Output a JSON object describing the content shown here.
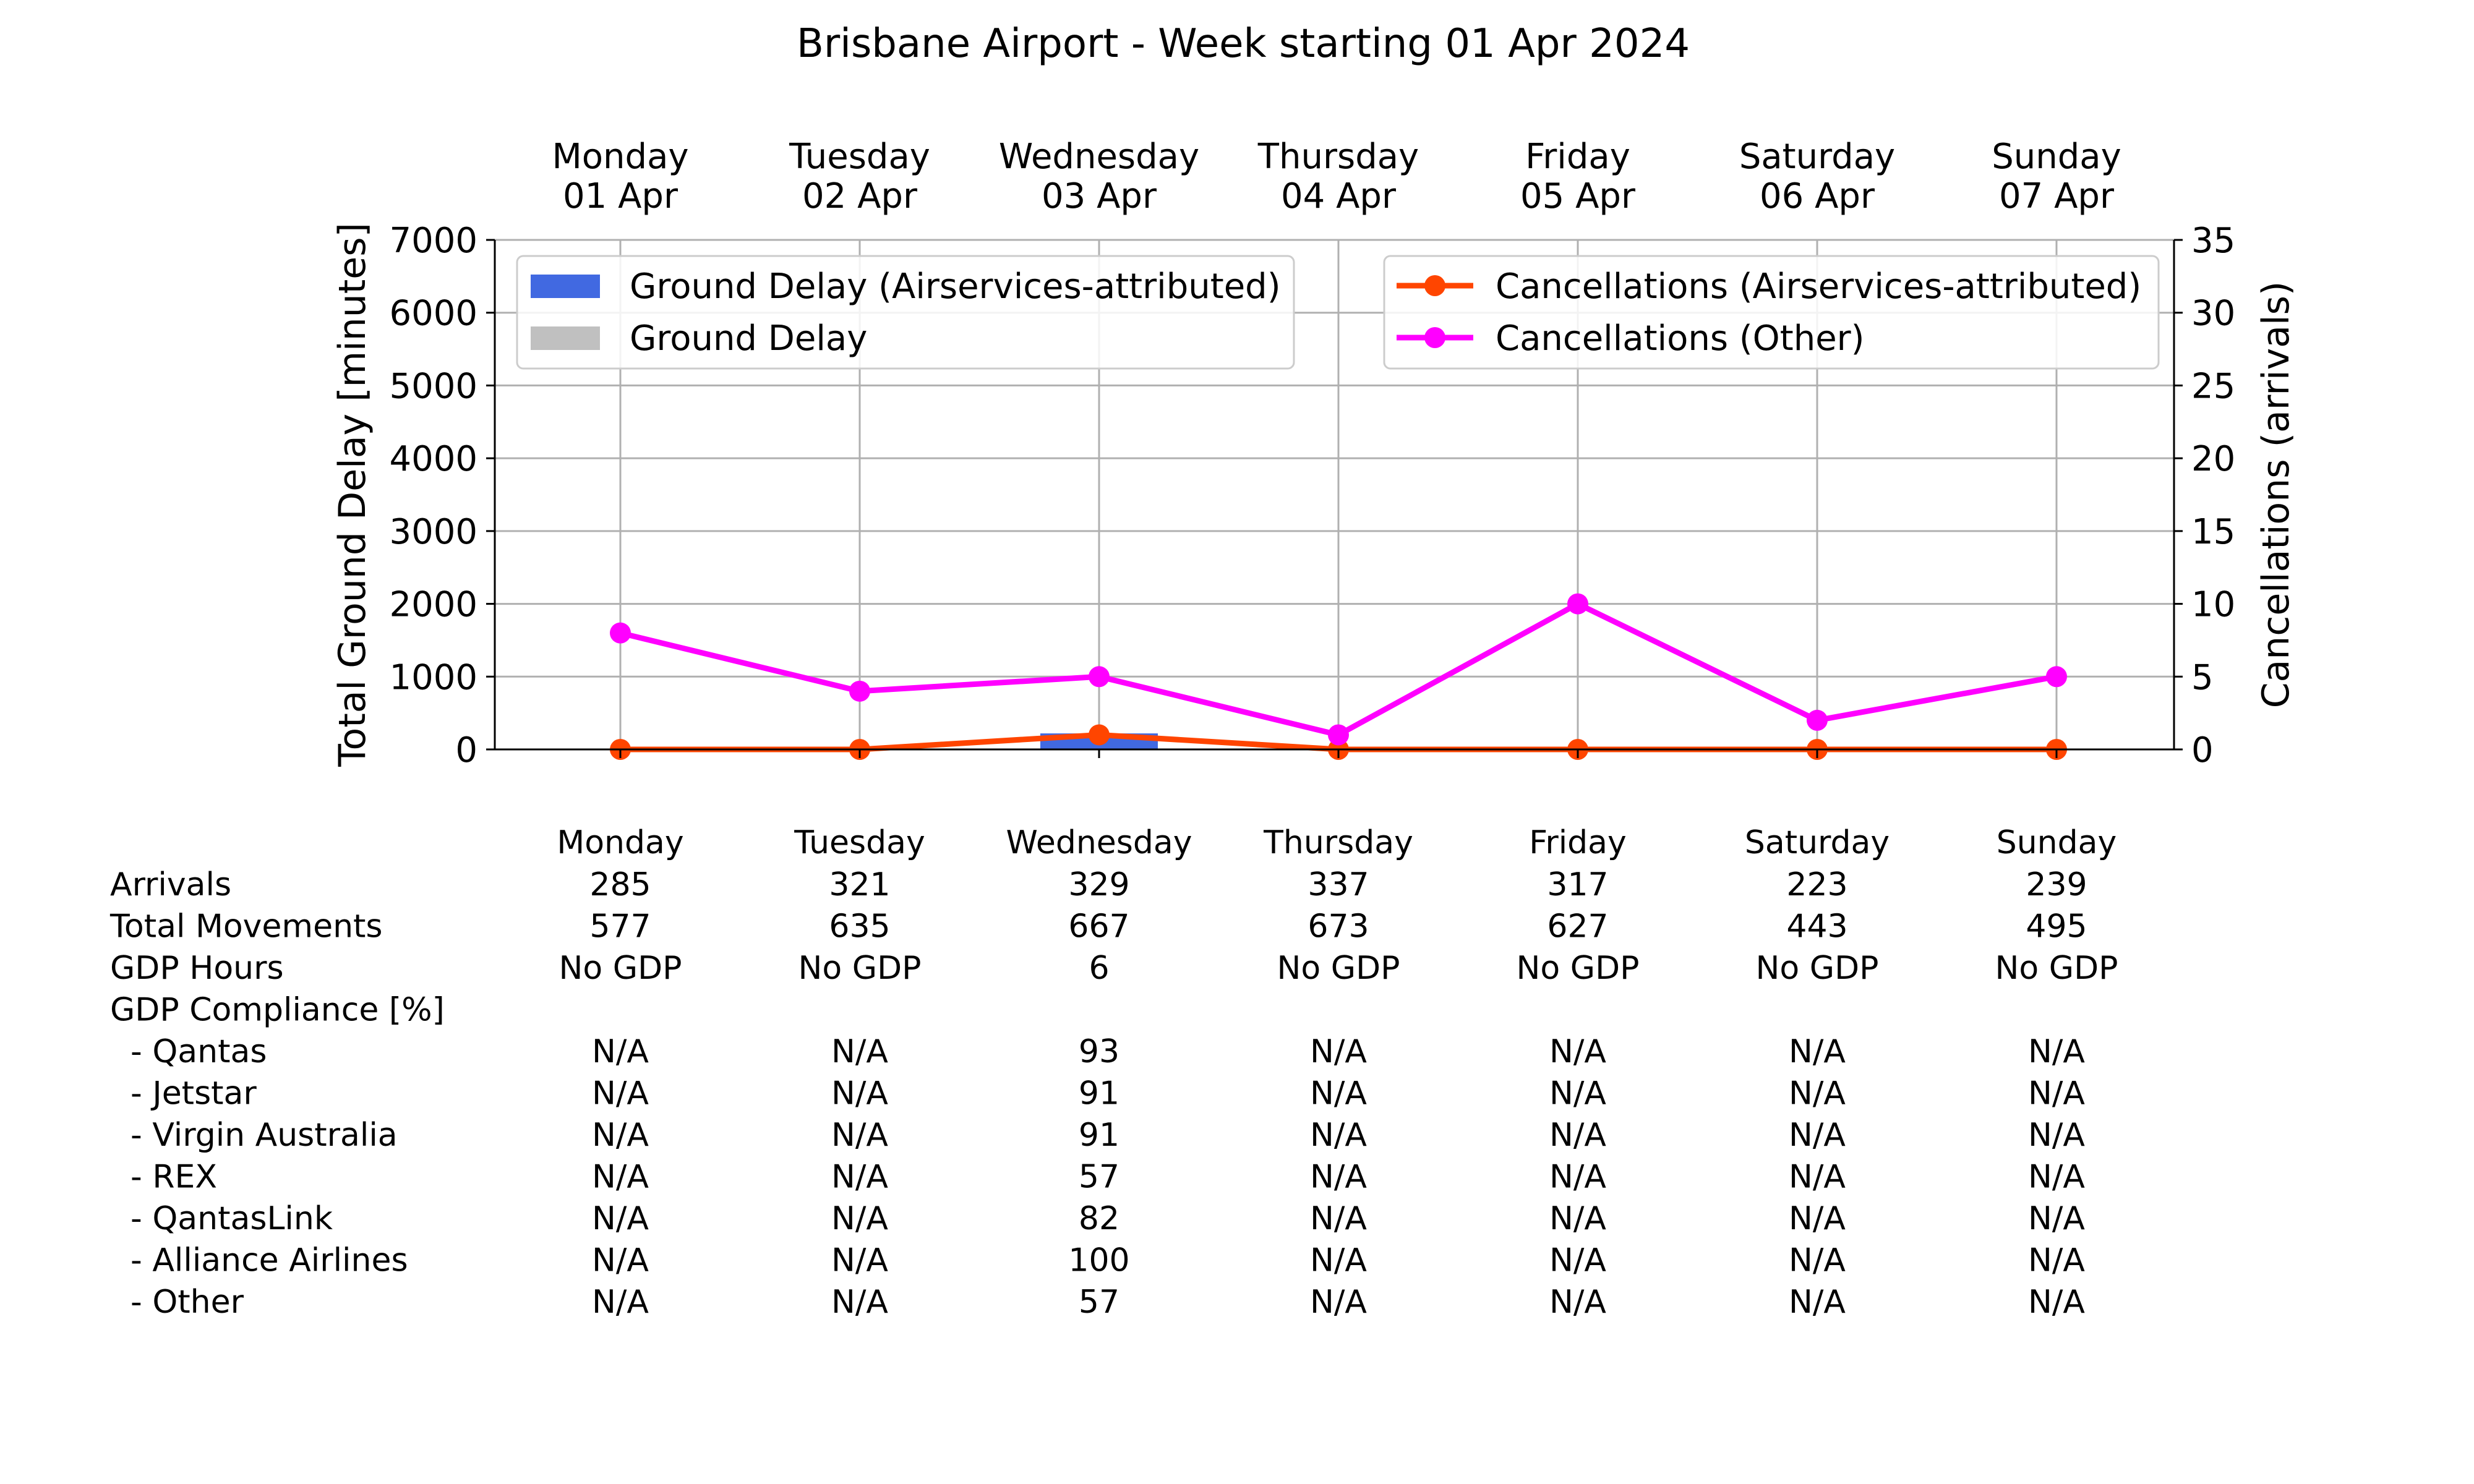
{
  "chart_data": {
    "type": "bar",
    "title": "Brisbane Airport - Week starting 01 Apr 2024",
    "days": [
      {
        "day": "Monday",
        "date": "01 Apr"
      },
      {
        "day": "Tuesday",
        "date": "02 Apr"
      },
      {
        "day": "Wednesday",
        "date": "03 Apr"
      },
      {
        "day": "Thursday",
        "date": "04 Apr"
      },
      {
        "day": "Friday",
        "date": "05 Apr"
      },
      {
        "day": "Saturday",
        "date": "06 Apr"
      },
      {
        "day": "Sunday",
        "date": "07 Apr"
      }
    ],
    "left_axis": {
      "label": "Total Ground Delay [minutes]",
      "ylim": [
        0,
        7000
      ],
      "ticks": [
        0,
        1000,
        2000,
        3000,
        4000,
        5000,
        6000,
        7000
      ]
    },
    "right_axis": {
      "label": "Cancellations (arrivals)",
      "ylim": [
        0,
        35
      ],
      "ticks": [
        0,
        5,
        10,
        15,
        20,
        25,
        30,
        35
      ]
    },
    "grid": true,
    "bar_series": [
      {
        "name": "Ground Delay (Airservices-attributed)",
        "color": "#4169e1",
        "values": [
          0,
          0,
          220,
          0,
          0,
          0,
          0
        ]
      },
      {
        "name": "Ground Delay",
        "color": "#c0c0c0",
        "values": [
          0,
          0,
          0,
          0,
          0,
          0,
          0
        ]
      }
    ],
    "line_series": [
      {
        "name": "Cancellations (Airservices-attributed)",
        "color": "#ff4500",
        "values": [
          0,
          0,
          1,
          0,
          0,
          0,
          0
        ]
      },
      {
        "name": "Cancellations (Other)",
        "color": "#ff00ff",
        "values": [
          8,
          4,
          5,
          1,
          10,
          2,
          5
        ]
      }
    ],
    "legend_left_placement": "upper-left",
    "legend_right_placement": "upper-right",
    "table": {
      "columns": [
        "Monday",
        "Tuesday",
        "Wednesday",
        "Thursday",
        "Friday",
        "Saturday",
        "Sunday"
      ],
      "rows": [
        {
          "label": "Arrivals",
          "values": [
            "285",
            "321",
            "329",
            "337",
            "317",
            "223",
            "239"
          ]
        },
        {
          "label": "Total Movements",
          "values": [
            "577",
            "635",
            "667",
            "673",
            "627",
            "443",
            "495"
          ]
        },
        {
          "label": "GDP Hours",
          "values": [
            "No GDP",
            "No GDP",
            "6",
            "No GDP",
            "No GDP",
            "No GDP",
            "No GDP"
          ]
        },
        {
          "label": "GDP Compliance [%]",
          "values": [
            "",
            "",
            "",
            "",
            "",
            "",
            ""
          ]
        },
        {
          "label": "  - Qantas",
          "values": [
            "N/A",
            "N/A",
            "93",
            "N/A",
            "N/A",
            "N/A",
            "N/A"
          ]
        },
        {
          "label": "  - Jetstar",
          "values": [
            "N/A",
            "N/A",
            "91",
            "N/A",
            "N/A",
            "N/A",
            "N/A"
          ]
        },
        {
          "label": "  - Virgin Australia",
          "values": [
            "N/A",
            "N/A",
            "91",
            "N/A",
            "N/A",
            "N/A",
            "N/A"
          ]
        },
        {
          "label": "  - REX",
          "values": [
            "N/A",
            "N/A",
            "57",
            "N/A",
            "N/A",
            "N/A",
            "N/A"
          ]
        },
        {
          "label": "  - QantasLink",
          "values": [
            "N/A",
            "N/A",
            "82",
            "N/A",
            "N/A",
            "N/A",
            "N/A"
          ]
        },
        {
          "label": "  - Alliance Airlines",
          "values": [
            "N/A",
            "N/A",
            "100",
            "N/A",
            "N/A",
            "N/A",
            "N/A"
          ]
        },
        {
          "label": "  - Other",
          "values": [
            "N/A",
            "N/A",
            "57",
            "N/A",
            "N/A",
            "N/A",
            "N/A"
          ]
        }
      ]
    }
  }
}
